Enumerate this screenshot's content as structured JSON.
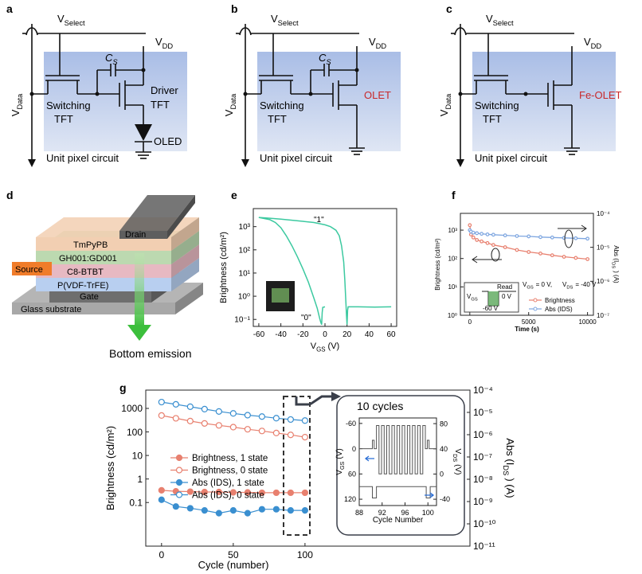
{
  "circuits": [
    {
      "label": "a",
      "select": {
        "main": "V",
        "sub": "Select"
      },
      "vdd": {
        "main": "V",
        "sub": "DD"
      },
      "vdata": {
        "main": "V",
        "sub": "Data"
      },
      "cs": {
        "main": "C",
        "sub": "S"
      },
      "switching": [
        "Switching",
        "TFT"
      ],
      "driver": [
        "Driver",
        "TFT"
      ],
      "device": "OLED",
      "caption": "Unit pixel circuit"
    },
    {
      "label": "b",
      "select": {
        "main": "V",
        "sub": "Select"
      },
      "vdd": {
        "main": "V",
        "sub": "DD"
      },
      "vdata": {
        "main": "V",
        "sub": "Data"
      },
      "cs": {
        "main": "C",
        "sub": "S"
      },
      "switching": [
        "Switching",
        "TFT"
      ],
      "device": "OLET",
      "caption": "Unit pixel circuit"
    },
    {
      "label": "c",
      "select": {
        "main": "V",
        "sub": "Select"
      },
      "vdd": {
        "main": "V",
        "sub": "DD"
      },
      "vdata": {
        "main": "V",
        "sub": "Data"
      },
      "switching": [
        "Switching",
        "TFT"
      ],
      "device": "Fe-OLET",
      "caption": "Unit pixel circuit"
    }
  ],
  "device_stack": {
    "label": "d",
    "layers": {
      "drain": "Drain",
      "etl": "TmPyPB",
      "eml": "GH001:GD001",
      "source": "Source",
      "semiconductor": "C8-BTBT",
      "dielectric": "P(VDF-TrFE)",
      "gate": "Gate",
      "substrate": "Glass substrate"
    },
    "emission": "Bottom emission"
  },
  "chart_data": [
    {
      "label": "e",
      "type": "line",
      "ylabel": "Brightness (cd/m²)",
      "xlabel": {
        "main": "V",
        "sub": "GS",
        "unit": "(V)"
      },
      "xlim": [
        -65,
        65
      ],
      "xticks": [
        -60,
        -40,
        -20,
        0,
        20,
        40,
        60
      ],
      "ylog": true,
      "ylim": [
        0.05,
        6000
      ],
      "yticks": [
        {
          "value": 0.1,
          "label": "10⁻¹"
        },
        {
          "value": 1,
          "label": "10⁰"
        },
        {
          "value": 10,
          "label": "10¹"
        },
        {
          "value": 100,
          "label": "10²"
        },
        {
          "value": 1000,
          "label": "10³"
        }
      ],
      "annotations": [
        "\"1\"",
        "\"0\""
      ],
      "series": [
        {
          "color": "#3cc9a0",
          "x": [
            -60,
            -50,
            -40,
            -30,
            -20,
            -10,
            0,
            5,
            10,
            13,
            15,
            17,
            18,
            19,
            19.5,
            20,
            20.5,
            21,
            30,
            45,
            60
          ],
          "values": [
            2500,
            2300,
            2100,
            1900,
            1700,
            1500,
            1200,
            1000,
            700,
            400,
            150,
            30,
            5,
            0.5,
            0.15,
            0.06,
            0.25,
            0.35,
            0.35,
            0.34,
            0.35
          ]
        },
        {
          "color": "#3cc9a0",
          "x": [
            -60,
            -50,
            -45,
            -40,
            -35,
            -30,
            -25,
            -20,
            -15,
            -10,
            -7,
            -5,
            -4,
            -3,
            -2.5,
            -2,
            0
          ],
          "values": [
            2500,
            2000,
            1500,
            900,
            400,
            150,
            50,
            15,
            4,
            0.8,
            0.3,
            0.12,
            0.08,
            0.06,
            0.2,
            0.33,
            0.35
          ]
        }
      ]
    },
    {
      "label": "f",
      "type": "line",
      "xlabel": "Time (s)",
      "ylabel": "Brightness (cd/m²)",
      "y2label": {
        "main": "Abs (I",
        "sub": "DS",
        "unit": ") (A)"
      },
      "xlim": [
        -800,
        10500
      ],
      "xticks": [
        0,
        5000,
        10000
      ],
      "ylog": true,
      "ylim": [
        1,
        3900
      ],
      "yticks": [
        {
          "value": 1,
          "label": "10⁰"
        },
        {
          "value": 10,
          "label": "10¹"
        },
        {
          "value": 100,
          "label": "10²"
        },
        {
          "value": 1000,
          "label": "10³"
        }
      ],
      "y2log": true,
      "y2lim": [
        1e-07,
        0.0001
      ],
      "y2ticks": [
        {
          "value": 1e-07,
          "label": "10⁻⁷"
        },
        {
          "value": 1e-06,
          "label": "10⁻⁶"
        },
        {
          "value": 1e-05,
          "label": "10⁻⁵"
        },
        {
          "value": 0.0001,
          "label": "10⁻⁴"
        }
      ],
      "condition": [
        {
          "main": "V",
          "sub": "GS",
          "unit": "= 0 V,"
        },
        {
          "main": "V",
          "sub": "DS",
          "unit": "= -40 V"
        }
      ],
      "waveform": {
        "vgs": {
          "main": "V",
          "sub": "GS"
        },
        "read": "Read",
        "read_level": "0 V",
        "write_level": "-60 V"
      },
      "x": [
        0,
        100,
        300,
        600,
        1000,
        1500,
        2000,
        3000,
        4000,
        5000,
        6000,
        7000,
        8000,
        9000,
        10000
      ],
      "series": [
        {
          "name": "Brightness",
          "color": "#e8806f",
          "marker": "open",
          "values": [
            1500,
            700,
            550,
            450,
            400,
            350,
            300,
            250,
            200,
            170,
            150,
            130,
            115,
            105,
            95
          ]
        },
        {
          "name": "Abs (IDS)",
          "color": "#7ea6e0",
          "marker": "open",
          "axis": "y2",
          "values": [
            3.2e-05,
            2.9e-05,
            2.7e-05,
            2.6e-05,
            2.5e-05,
            2.4e-05,
            2.35e-05,
            2.25e-05,
            2.15e-05,
            2.1e-05,
            2e-05,
            1.95e-05,
            1.9e-05,
            1.85e-05,
            1.8e-05
          ]
        }
      ]
    },
    {
      "label": "g",
      "type": "line",
      "xlabel": "Cycle (number)",
      "ylabel": "Brightness (cd/m²)",
      "y2label": {
        "main": "Abs (I",
        "sub": "DS",
        "unit": ") (A)"
      },
      "xlim": [
        -11,
        215
      ],
      "xticks": [
        0,
        50,
        100
      ],
      "ylog": true,
      "ylim": [
        0.0014,
        6000
      ],
      "yticks": [
        0.1,
        1,
        10,
        100,
        1000
      ],
      "y2log": true,
      "y2lim": [
        1e-11,
        0.0001
      ],
      "y2ticks": [
        {
          "value": 1e-11,
          "label": "10⁻¹¹"
        },
        {
          "value": 1e-10,
          "label": "10⁻¹⁰"
        },
        {
          "value": 1e-09,
          "label": "10⁻⁹"
        },
        {
          "value": 1e-08,
          "label": "10⁻⁸"
        },
        {
          "value": 1e-07,
          "label": "10⁻⁷"
        },
        {
          "value": 1e-06,
          "label": "10⁻⁶"
        },
        {
          "value": 1e-05,
          "label": "10⁻⁵"
        },
        {
          "value": 0.0001,
          "label": "10⁻⁴"
        }
      ],
      "annotation": "10 cycles",
      "x": [
        0,
        10,
        20,
        30,
        40,
        50,
        60,
        70,
        80,
        90,
        100
      ],
      "series": [
        {
          "name": "Brightness, 1 state",
          "color": "#e8806f",
          "marker": "filled",
          "values": [
            0.33,
            0.3,
            0.29,
            0.28,
            0.28,
            0.27,
            0.27,
            0.26,
            0.26,
            0.26,
            0.26
          ]
        },
        {
          "name": "Brightness, 0 state",
          "color": "#e8806f",
          "marker": "open",
          "values": [
            500,
            380,
            290,
            230,
            190,
            160,
            130,
            110,
            90,
            75,
            60
          ]
        },
        {
          "name": "Abs (IDS), 1 state",
          "color": "#3a8fd0",
          "marker": "filled",
          "axis": "y2",
          "values": [
            1.2e-09,
            6e-10,
            5e-10,
            4e-10,
            3e-10,
            4e-10,
            3e-10,
            4.5e-10,
            4.5e-10,
            4e-10,
            4e-10
          ]
        },
        {
          "name": "Abs (IDS), 0 state",
          "color": "#3a8fd0",
          "marker": "open",
          "axis": "y2",
          "values": [
            2.9e-05,
            2.3e-05,
            1.8e-05,
            1.4e-05,
            1.1e-05,
            9e-06,
            7.5e-06,
            6.5e-06,
            5.5e-06,
            4.8e-06,
            4.3e-06
          ]
        }
      ]
    },
    {
      "type": "line",
      "xlabel": "Cycle Number",
      "ylabel": {
        "main": "V",
        "sub": "GS",
        "unit": "(V)"
      },
      "y2label": {
        "main": "V",
        "sub": "DS",
        "unit": "(V)"
      },
      "xlim": [
        88,
        101.5
      ],
      "xticks": [
        88,
        92,
        96,
        100
      ],
      "ylim": [
        135,
        -73
      ],
      "yticks": [
        -60,
        0,
        60,
        120
      ],
      "y2lim": [
        -50,
        89
      ],
      "y2ticks": [
        -40,
        0,
        40,
        80
      ],
      "series": [
        {
          "color": "#555555",
          "x": [
            88,
            90.3,
            90.3,
            90.6,
            90.6,
            91,
            91,
            91.45,
            91.45,
            91.9,
            91.9,
            92.35,
            92.35,
            92.8,
            92.8,
            93.25,
            93.25,
            93.7,
            93.7,
            94.15,
            94.15,
            94.6,
            94.6,
            95.05,
            95.05,
            95.5,
            95.5,
            95.95,
            95.95,
            96.4,
            96.4,
            96.85,
            96.85,
            97.3,
            97.3,
            97.75,
            97.75,
            98.2,
            98.2,
            98.65,
            98.65,
            99.1,
            99.1,
            99.55,
            99.55,
            99.9,
            99.9,
            100.2,
            100.2,
            101.5
          ],
          "values": [
            0,
            0,
            -20,
            -20,
            0,
            0,
            -55,
            -55,
            60,
            60,
            -55,
            -55,
            60,
            60,
            -55,
            -55,
            60,
            60,
            -55,
            -55,
            60,
            60,
            -55,
            -55,
            60,
            60,
            -55,
            -55,
            60,
            60,
            -55,
            -55,
            60,
            60,
            -55,
            -55,
            60,
            60,
            -55,
            -55,
            60,
            60,
            -55,
            -55,
            0,
            0,
            -20,
            -20,
            0,
            0
          ]
        },
        {
          "color": "#555555",
          "axis": "y2",
          "x": [
            88,
            90.3,
            90.3,
            91,
            91,
            99.7,
            99.7,
            100.4,
            100.4,
            101.5
          ],
          "values": [
            -20,
            -20,
            -38,
            -38,
            -20,
            -20,
            -38,
            -38,
            -20,
            -20
          ]
        }
      ]
    }
  ]
}
